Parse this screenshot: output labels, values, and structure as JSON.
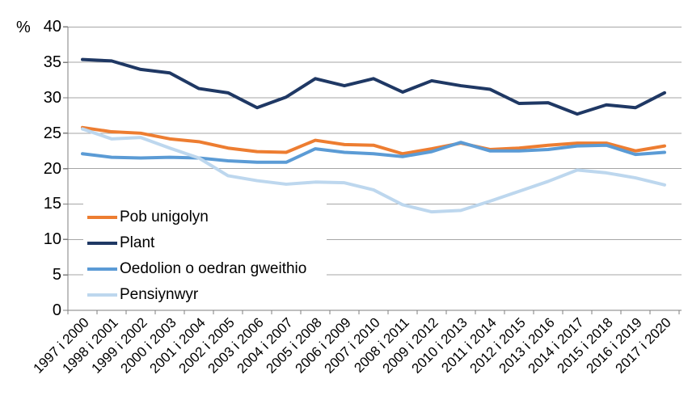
{
  "chart_data": {
    "type": "line",
    "title": "",
    "ylabel": "%",
    "xlabel": "",
    "ylim": [
      0,
      40
    ],
    "y_ticks": [
      0,
      5,
      10,
      15,
      20,
      25,
      30,
      35,
      40
    ],
    "grid": "horizontal",
    "grid_color": "#A6A6A6",
    "axis_color": "#7F7F7F",
    "legend_position": "inside-bottom-left",
    "x_tick_label_rotation_deg": 45,
    "categories": [
      "1997 i 2000",
      "1998 i 2001",
      "1999 i 2002",
      "2000 i 2003",
      "2001 i 2004",
      "2002 i 2005",
      "2003 i 2006",
      "2004 i 2007",
      "2005 i 2008",
      "2006 i 2009",
      "2007 i 2010",
      "2008 i 2011",
      "2009 i 2012",
      "2010 i 2013",
      "2011 i 2014",
      "2012 i 2015",
      "2013 i 2016",
      "2014 i 2017",
      "2015 i 2018",
      "2016 i 2019",
      "2017 i 2020"
    ],
    "series": [
      {
        "name": "Pob unigolyn",
        "color": "#ED7D31",
        "values": [
          25.8,
          25.2,
          25.0,
          24.2,
          23.8,
          22.9,
          22.4,
          22.3,
          24.0,
          23.4,
          23.3,
          22.1,
          22.8,
          23.6,
          22.7,
          22.9,
          23.3,
          23.6,
          23.6,
          22.5,
          23.2
        ]
      },
      {
        "name": "Plant",
        "color": "#1F3864",
        "values": [
          35.4,
          35.2,
          34.0,
          33.5,
          31.3,
          30.7,
          28.6,
          30.1,
          32.7,
          31.7,
          32.7,
          30.8,
          32.4,
          31.7,
          31.2,
          29.2,
          29.3,
          27.7,
          29.0,
          28.6,
          30.7
        ]
      },
      {
        "name": "Oedolion o oedran gweithio",
        "color": "#5B9BD5",
        "values": [
          22.1,
          21.6,
          21.5,
          21.6,
          21.5,
          21.1,
          20.9,
          20.9,
          22.8,
          22.3,
          22.1,
          21.7,
          22.4,
          23.7,
          22.5,
          22.5,
          22.7,
          23.2,
          23.3,
          22.0,
          22.3
        ]
      },
      {
        "name": "Pensiynwyr",
        "color": "#BDD7EE",
        "values": [
          25.6,
          24.2,
          24.4,
          22.9,
          21.5,
          19.0,
          18.3,
          17.8,
          18.1,
          18.0,
          17.0,
          14.9,
          13.9,
          14.1,
          15.4,
          16.8,
          18.2,
          19.8,
          19.4,
          18.7,
          17.7
        ]
      }
    ]
  }
}
